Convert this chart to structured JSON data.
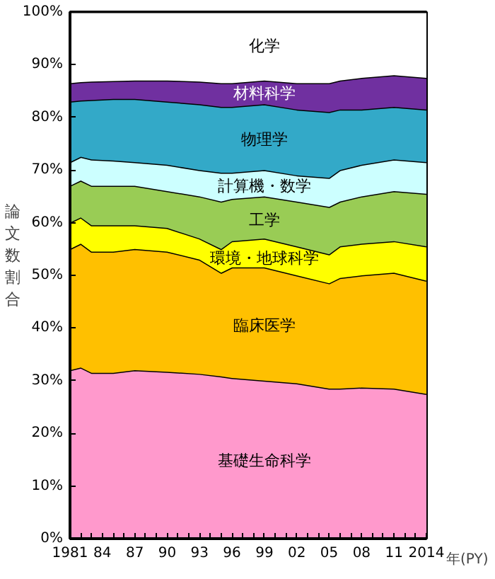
{
  "chart_data": {
    "type": "area",
    "stacked": true,
    "ylabel": "論文数割合",
    "xlabel": "年(PY)",
    "x": [
      1981,
      1982,
      1983,
      1985,
      1987,
      1990,
      1993,
      1995,
      1996,
      1999,
      2002,
      2005,
      2006,
      2008,
      2011,
      2014
    ],
    "series": [
      {
        "name": "基礎生命科学",
        "color": "#ff99cc",
        "values": [
          32,
          32.5,
          31.5,
          31.5,
          32,
          31.7,
          31.3,
          30.8,
          30.5,
          30,
          29.5,
          28.5,
          28.5,
          28.7,
          28.5,
          27.5
        ]
      },
      {
        "name": "臨床医学",
        "color": "#ffc000",
        "values": [
          23,
          23.5,
          23,
          23,
          23,
          22.8,
          21.7,
          19.7,
          21,
          21.5,
          20.5,
          20,
          21,
          21.3,
          22,
          21.5
        ]
      },
      {
        "name": "環境・地球科学",
        "color": "#ffff00",
        "values": [
          5,
          5,
          5,
          5,
          4.5,
          4.5,
          4,
          4.5,
          5,
          5.5,
          5.5,
          5.5,
          6,
          6,
          6,
          6.5
        ]
      },
      {
        "name": "工学",
        "color": "#99cc55",
        "values": [
          7,
          7,
          7.5,
          7.5,
          7.5,
          7,
          8,
          9,
          8,
          8,
          8.5,
          9,
          8.5,
          9,
          9.5,
          10
        ]
      },
      {
        "name": "計算機・数学",
        "color": "#ccffff",
        "values": [
          4.5,
          4.5,
          5,
          4.8,
          4.5,
          5,
          5,
          5.5,
          5,
          5,
          5,
          5.5,
          6,
          6,
          6,
          6
        ]
      },
      {
        "name": "物理学",
        "color": "#33a9c8",
        "values": [
          11.5,
          10.7,
          11.3,
          11.7,
          12,
          12,
          12.5,
          12.5,
          12.5,
          12.5,
          12.5,
          12.5,
          11.5,
          10.5,
          10,
          10
        ]
      },
      {
        "name": "材料科学",
        "color": "#7030a0",
        "values": [
          3.5,
          3.5,
          3.5,
          3.4,
          3.5,
          4,
          4.3,
          4.5,
          4.5,
          4.5,
          5,
          5.5,
          5.5,
          6,
          6,
          6
        ]
      },
      {
        "name": "化学",
        "color": "#ffffff",
        "values": [
          13.5,
          13.3,
          13.2,
          13.1,
          13,
          13,
          13.2,
          13.5,
          13.5,
          13,
          13.5,
          13.5,
          13,
          12.5,
          12,
          12.5
        ]
      }
    ],
    "xlim": [
      1981,
      2014
    ],
    "xticks": [
      1981,
      {
        "value": 1984,
        "label": "84"
      },
      {
        "value": 1987,
        "label": "87"
      },
      {
        "value": 1990,
        "label": "90"
      },
      {
        "value": 1993,
        "label": "93"
      },
      {
        "value": 1996,
        "label": "96"
      },
      {
        "value": 1999,
        "label": "99"
      },
      {
        "value": 2002,
        "label": "02"
      },
      {
        "value": 2005,
        "label": "05"
      },
      {
        "value": 2008,
        "label": "08"
      },
      {
        "value": 2011,
        "label": "11"
      },
      2014
    ],
    "ylim": [
      0,
      100
    ],
    "yticks": [
      {
        "value": 0,
        "label": "0%"
      },
      {
        "value": 10,
        "label": "10%"
      },
      {
        "value": 20,
        "label": "20%"
      },
      {
        "value": 30,
        "label": "30%"
      },
      {
        "value": 40,
        "label": "40%"
      },
      {
        "value": 50,
        "label": "50%"
      },
      {
        "value": 60,
        "label": "60%"
      },
      {
        "value": 70,
        "label": "70%"
      },
      {
        "value": 80,
        "label": "80%"
      },
      {
        "value": 90,
        "label": "90%"
      },
      {
        "value": 100,
        "label": "100%"
      }
    ],
    "legend": false
  }
}
